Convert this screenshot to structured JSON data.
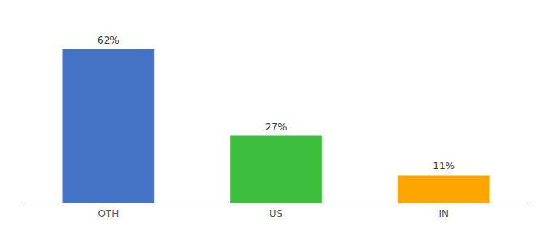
{
  "chart_data": {
    "type": "bar",
    "categories": [
      "OTH",
      "US",
      "IN"
    ],
    "values": [
      62,
      27,
      11
    ],
    "value_labels": [
      "62%",
      "27%",
      "11%"
    ],
    "colors": [
      "#4472C4",
      "#3DBF3D",
      "#FFA500"
    ],
    "ylim": [
      0,
      72
    ],
    "grid": false,
    "data_labels": true,
    "tick_labels": "x"
  }
}
